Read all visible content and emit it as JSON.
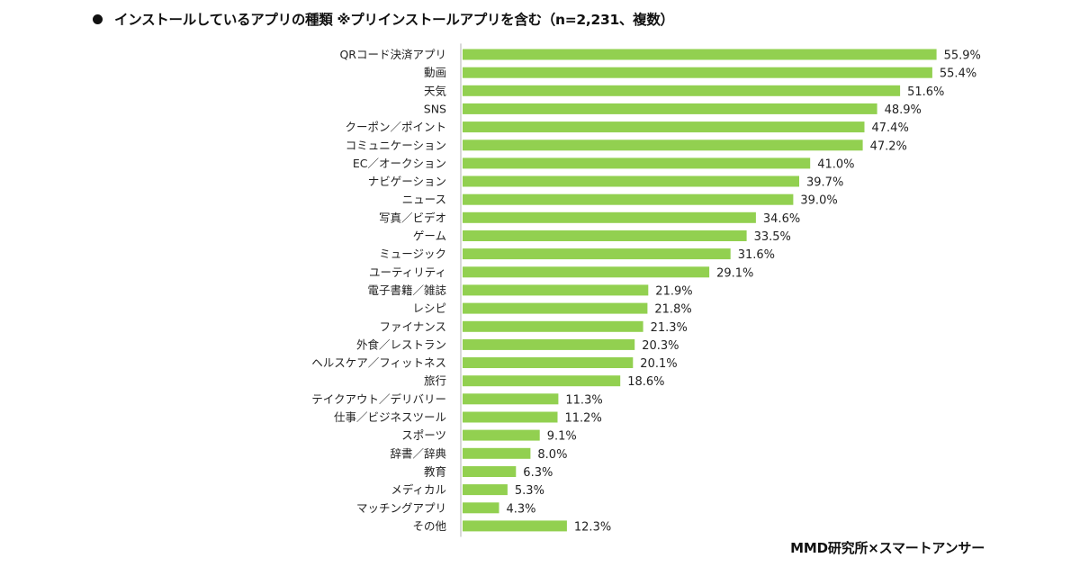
{
  "header": {
    "title": "インストールしているアプリの種類 ※プリインストールアプリを含む（n=2,231、複数）"
  },
  "footer": {
    "source": "MMD研究所×スマートアンサー"
  },
  "colors": {
    "bar": "#92D050",
    "axis": "#D9D9D9",
    "text": "#222222"
  },
  "chart_data": {
    "type": "bar",
    "orientation": "horizontal",
    "title": "インストールしているアプリの種類 ※プリインストールアプリを含む（n=2,231、複数）",
    "xlabel": "",
    "ylabel": "",
    "unit": "%",
    "xlim": [
      0,
      60
    ],
    "grid": false,
    "legend": "none",
    "categories": [
      "QRコード決済アプリ",
      "動画",
      "天気",
      "SNS",
      "クーポン／ポイント",
      "コミュニケーション",
      "EC／オークション",
      "ナビゲーション",
      "ニュース",
      "写真／ビデオ",
      "ゲーム",
      "ミュージック",
      "ユーティリティ",
      "電子書籍／雑誌",
      "レシピ",
      "ファイナンス",
      "外食／レストラン",
      "ヘルスケア／フィットネス",
      "旅行",
      "テイクアウト／デリバリー",
      "仕事／ビジネスツール",
      "スポーツ",
      "辞書／辞典",
      "教育",
      "メディカル",
      "マッチングアプリ",
      "その他"
    ],
    "values": [
      55.9,
      55.4,
      51.6,
      48.9,
      47.4,
      47.2,
      41.0,
      39.7,
      39.0,
      34.6,
      33.5,
      31.6,
      29.1,
      21.9,
      21.8,
      21.3,
      20.3,
      20.1,
      18.6,
      11.3,
      11.2,
      9.1,
      8.0,
      6.3,
      5.3,
      4.3,
      12.3
    ],
    "data_labels": [
      "55.9%",
      "55.4%",
      "51.6%",
      "48.9%",
      "47.4%",
      "47.2%",
      "41.0%",
      "39.7%",
      "39.0%",
      "34.6%",
      "33.5%",
      "31.6%",
      "29.1%",
      "21.9%",
      "21.8%",
      "21.3%",
      "20.3%",
      "20.1%",
      "18.6%",
      "11.3%",
      "11.2%",
      "9.1%",
      "8.0%",
      "6.3%",
      "5.3%",
      "4.3%",
      "12.3%"
    ],
    "source": "MMD研究所×スマートアンサー"
  }
}
